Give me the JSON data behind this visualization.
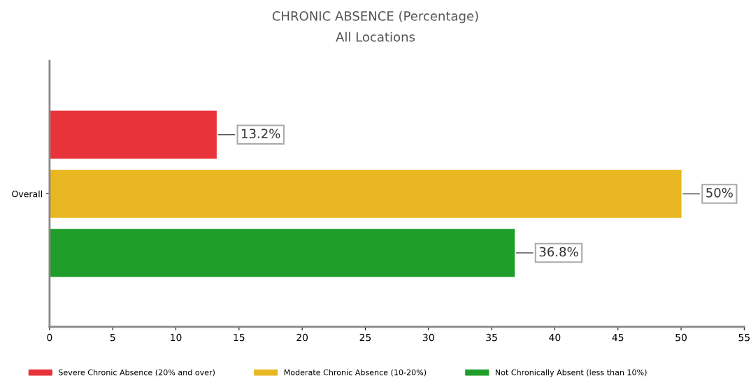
{
  "chart_data": {
    "type": "bar",
    "orientation": "horizontal",
    "title": "CHRONIC ABSENCE (Percentage)",
    "subtitle": "All Locations",
    "categories": [
      "Overall"
    ],
    "series": [
      {
        "name": "Severe Chronic Absence (20% and over)",
        "color": "#e8333b",
        "values": [
          13.2
        ],
        "value_labels": [
          "13.2%"
        ]
      },
      {
        "name": "Moderate Chronic Absence (10-20%)",
        "color": "#e9b722",
        "values": [
          50
        ],
        "value_labels": [
          "50%"
        ]
      },
      {
        "name": "Not Chronically Absent (less than 10%)",
        "color": "#1f9e2a",
        "values": [
          36.8
        ],
        "value_labels": [
          "36.8%"
        ]
      }
    ],
    "xlim": [
      0,
      55
    ],
    "xticks": [
      0,
      5,
      10,
      15,
      20,
      25,
      30,
      35,
      40,
      45,
      50,
      55
    ],
    "grid": false,
    "legend": "bottom"
  }
}
